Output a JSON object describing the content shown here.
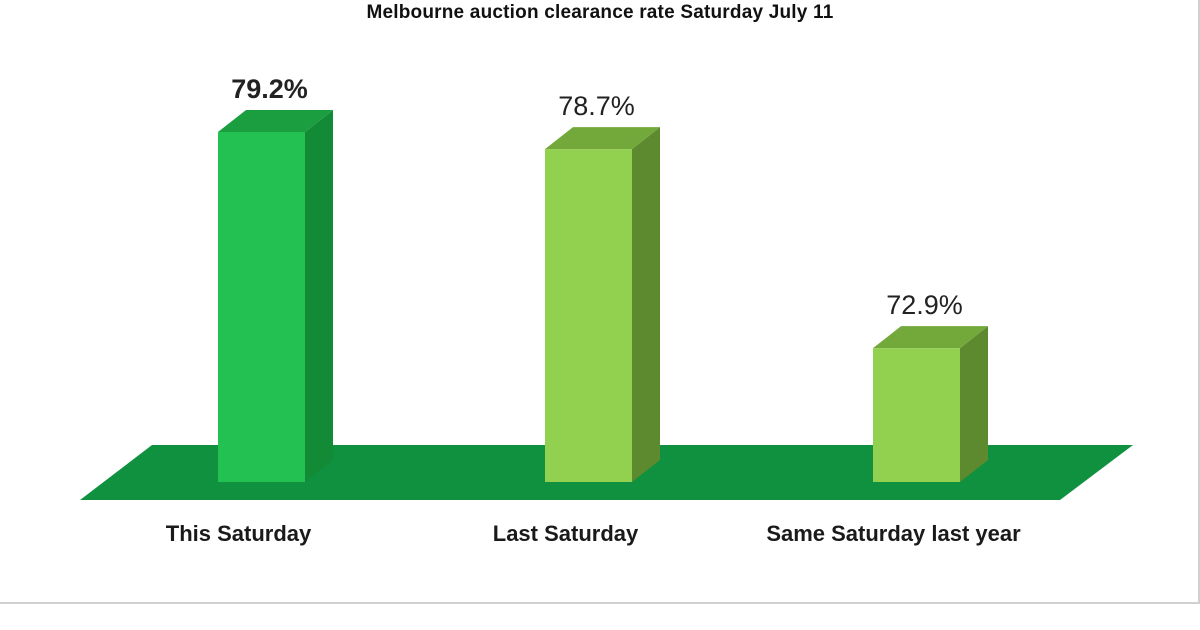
{
  "chart_data": {
    "type": "bar",
    "title": "Melbourne auction clearance rate Saturday July 11",
    "categories": [
      "This Saturday",
      "Last Saturday",
      "Same Saturday last year"
    ],
    "values": [
      79.2,
      78.7,
      72.9
    ],
    "value_labels": [
      "79.2%",
      "78.7%",
      "72.9%"
    ],
    "series": [
      {
        "values": [
          79.2,
          78.7,
          72.9
        ]
      }
    ],
    "xlabel": "",
    "ylabel": "",
    "style": "3d-column",
    "grid": false,
    "legend": "none",
    "colors": {
      "bar_primary": "#22c152",
      "bar_primary_side": "#138a36",
      "bar_primary_top": "#1a9e40",
      "bar_secondary": "#92d050",
      "bar_secondary_side": "#5e8a2f",
      "bar_secondary_top": "#73a83a",
      "floor": "#0f9140"
    }
  }
}
